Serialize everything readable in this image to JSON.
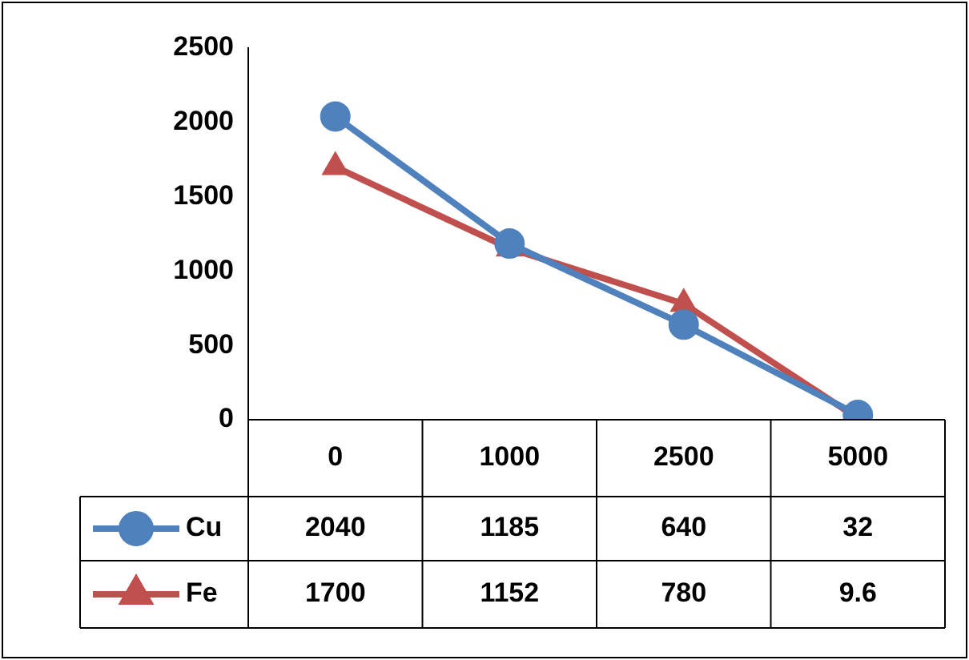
{
  "chart_data": {
    "type": "line",
    "categories": [
      "0",
      "1000",
      "2500",
      "5000"
    ],
    "series": [
      {
        "name": "Cu",
        "color": "#4f81bd",
        "marker": "circle",
        "values": [
          2040,
          1185,
          640,
          32
        ]
      },
      {
        "name": "Fe",
        "color": "#c0504d",
        "marker": "triangle",
        "values": [
          1700,
          1152,
          780,
          9.6
        ]
      }
    ],
    "ylim": [
      0,
      2500
    ],
    "yticks": [
      0,
      500,
      1000,
      1500,
      2000,
      2500
    ],
    "grid": false,
    "legend": "bottom",
    "data_labels": true,
    "line_style": "solid"
  }
}
